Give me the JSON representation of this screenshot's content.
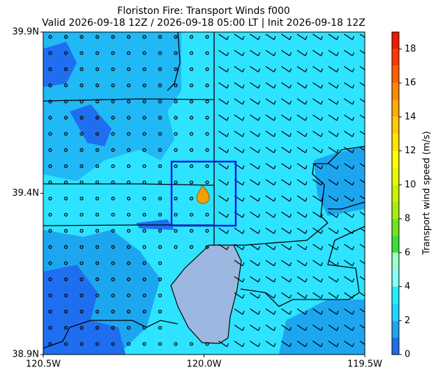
{
  "chart_data": {
    "type": "map",
    "title": "Floriston Fire: Transport Winds f000",
    "subtitle": "Valid 2026-09-18 12Z / 2026-09-18 05:00 LT | Init 2026-09-18 12Z",
    "xlim": [
      -120.5,
      -119.5
    ],
    "ylim": [
      38.9,
      39.9
    ],
    "xticks": [
      {
        "value": -120.5,
        "label": "120.5W"
      },
      {
        "value": -120.0,
        "label": "120.0W"
      },
      {
        "value": -119.5,
        "label": "119.5W"
      }
    ],
    "yticks": [
      {
        "value": 38.9,
        "label": "38.9N"
      },
      {
        "value": 39.4,
        "label": "39.4N"
      },
      {
        "value": 39.9,
        "label": "39.9N"
      }
    ],
    "colorbar": {
      "label": "Transport wind speed (m/s)",
      "lim": [
        0,
        19
      ],
      "ticks": [
        0,
        2,
        4,
        6,
        8,
        10,
        12,
        14,
        16,
        18
      ],
      "bounds": [
        0,
        1,
        2,
        3,
        4,
        5,
        6,
        7,
        8,
        9,
        10,
        11,
        12,
        13,
        14,
        15,
        16,
        17,
        18,
        19
      ],
      "colors": [
        "#1f6ef0",
        "#1ca6f0",
        "#1ed6ff",
        "#22f0ff",
        "#86fff6",
        "#9effc8",
        "#39e03a",
        "#6ee51e",
        "#a6ee10",
        "#ccf200",
        "#e8f800",
        "#ffff00",
        "#ffe600",
        "#ffcc00",
        "#ffad00",
        "#ff8a00",
        "#ff6200",
        "#ff3a00",
        "#f01a00"
      ]
    }
  }
}
